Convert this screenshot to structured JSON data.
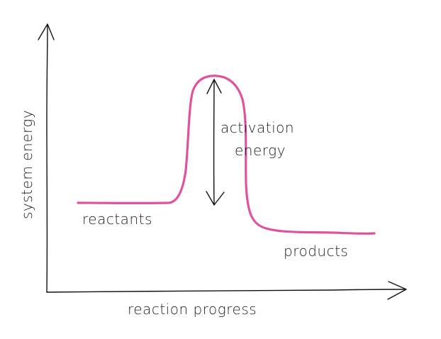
{
  "colors": {
    "curve": "#e0529c",
    "ink": "#111111",
    "background": "#ffffff"
  },
  "labels": {
    "y_axis": "system energy",
    "x_axis": "reaction progress",
    "reactants": "reactants",
    "products": "products",
    "activation_line1": "activation",
    "activation_line2": "energy"
  }
}
